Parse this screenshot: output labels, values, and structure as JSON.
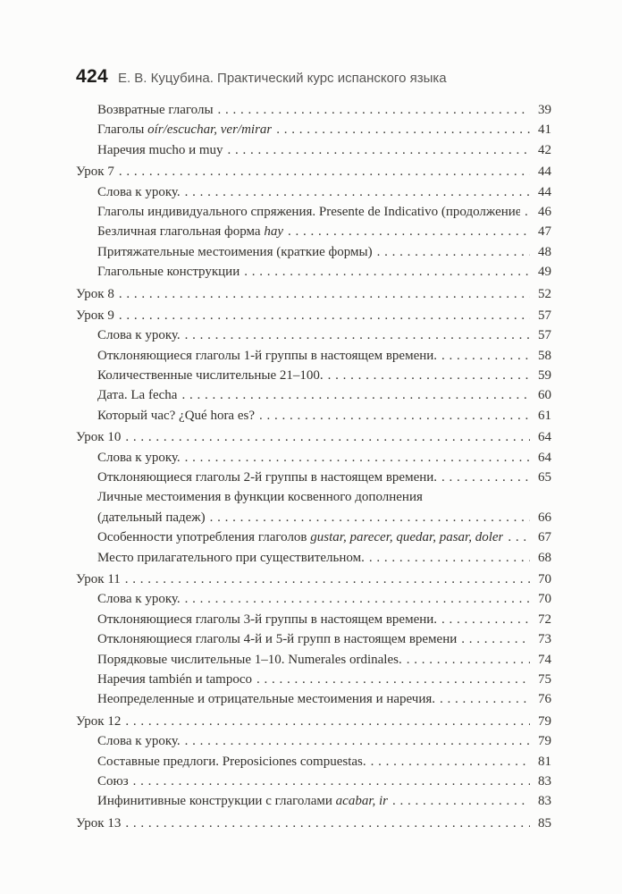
{
  "page": {
    "number": "424",
    "running_title": "Е. В. Куцубина. Практический курс испанского языка"
  },
  "toc": {
    "entries": [
      {
        "indent": 1,
        "gap": 0,
        "parts": [
          [
            "Возвратные глаголы",
            0
          ]
        ],
        "page": "39"
      },
      {
        "indent": 1,
        "gap": 0,
        "parts": [
          [
            "Глаголы ",
            0
          ],
          [
            "oír/escuchar, ver/mirar",
            1
          ]
        ],
        "page": "41"
      },
      {
        "indent": 1,
        "gap": 0,
        "parts": [
          [
            "Наречия mucho и muy",
            0
          ]
        ],
        "page": "42"
      },
      {
        "indent": 0,
        "gap": 1,
        "parts": [
          [
            "Урок 7",
            0
          ]
        ],
        "page": "44"
      },
      {
        "indent": 1,
        "gap": 0,
        "parts": [
          [
            "Слова к уроку.",
            0
          ]
        ],
        "page": "44"
      },
      {
        "indent": 1,
        "gap": 0,
        "parts": [
          [
            "Глаголы индивидуального спряжения. Presente de Indicativo (продолжение).",
            0
          ]
        ],
        "page": "46"
      },
      {
        "indent": 1,
        "gap": 0,
        "parts": [
          [
            "Безличная глагольная форма ",
            0
          ],
          [
            "hay",
            1
          ]
        ],
        "page": "47"
      },
      {
        "indent": 1,
        "gap": 0,
        "parts": [
          [
            "Притяжательные местоимения (краткие формы)",
            0
          ]
        ],
        "page": "48"
      },
      {
        "indent": 1,
        "gap": 0,
        "parts": [
          [
            "Глагольные конструкции",
            0
          ]
        ],
        "page": "49"
      },
      {
        "indent": 0,
        "gap": 1,
        "parts": [
          [
            "Урок 8",
            0
          ]
        ],
        "page": "52"
      },
      {
        "indent": 0,
        "gap": 1,
        "parts": [
          [
            "Урок 9",
            0
          ]
        ],
        "page": "57"
      },
      {
        "indent": 1,
        "gap": 0,
        "parts": [
          [
            "Слова к уроку.",
            0
          ]
        ],
        "page": "57"
      },
      {
        "indent": 1,
        "gap": 0,
        "parts": [
          [
            "Отклоняющиеся глаголы 1-й группы в настоящем времени.",
            0
          ]
        ],
        "page": "58"
      },
      {
        "indent": 1,
        "gap": 0,
        "parts": [
          [
            "Количественные числительные 21–100.",
            0
          ]
        ],
        "page": "59"
      },
      {
        "indent": 1,
        "gap": 0,
        "parts": [
          [
            "Дата. La fecha",
            0
          ]
        ],
        "page": "60"
      },
      {
        "indent": 1,
        "gap": 0,
        "parts": [
          [
            "Который час? ¿Qué hora es?",
            0
          ]
        ],
        "page": "61"
      },
      {
        "indent": 0,
        "gap": 1,
        "parts": [
          [
            "Урок 10",
            0
          ]
        ],
        "page": "64"
      },
      {
        "indent": 1,
        "gap": 0,
        "parts": [
          [
            "Слова к уроку.",
            0
          ]
        ],
        "page": "64"
      },
      {
        "indent": 1,
        "gap": 0,
        "parts": [
          [
            "Отклоняющиеся глаголы 2-й группы в настоящем времени.",
            0
          ]
        ],
        "page": "65"
      },
      {
        "indent": 1,
        "gap": 0,
        "parts": [
          [
            "Личные местоимения в функции косвенного дополнения",
            0
          ]
        ],
        "page": null
      },
      {
        "indent": 1,
        "gap": 0,
        "parts": [
          [
            "(дательный падеж)",
            0
          ]
        ],
        "page": "66"
      },
      {
        "indent": 1,
        "gap": 0,
        "parts": [
          [
            "Особенности употребления глаголов ",
            0
          ],
          [
            "gustar, parecer, quedar, pasar, doler",
            1
          ]
        ],
        "page": "67"
      },
      {
        "indent": 1,
        "gap": 0,
        "parts": [
          [
            "Место прилагательного при существительном.",
            0
          ]
        ],
        "page": "68"
      },
      {
        "indent": 0,
        "gap": 1,
        "parts": [
          [
            "Урок 11",
            0
          ]
        ],
        "page": "70"
      },
      {
        "indent": 1,
        "gap": 0,
        "parts": [
          [
            "Слова к уроку.",
            0
          ]
        ],
        "page": "70"
      },
      {
        "indent": 1,
        "gap": 0,
        "parts": [
          [
            "Отклоняющиеся глаголы 3-й группы в настоящем времени.",
            0
          ]
        ],
        "page": "72"
      },
      {
        "indent": 1,
        "gap": 0,
        "parts": [
          [
            "Отклоняющиеся глаголы 4-й и 5-й групп в настоящем времени",
            0
          ]
        ],
        "page": "73"
      },
      {
        "indent": 1,
        "gap": 0,
        "parts": [
          [
            "Порядковые числительные 1–10. Numerales ordinales.",
            0
          ]
        ],
        "page": "74"
      },
      {
        "indent": 1,
        "gap": 0,
        "parts": [
          [
            "Наречия también и tampoco",
            0
          ]
        ],
        "page": "75"
      },
      {
        "indent": 1,
        "gap": 0,
        "parts": [
          [
            "Неопределенные и отрицательные местоимения и наречия.",
            0
          ]
        ],
        "page": "76"
      },
      {
        "indent": 0,
        "gap": 1,
        "parts": [
          [
            "Урок 12",
            0
          ]
        ],
        "page": "79"
      },
      {
        "indent": 1,
        "gap": 0,
        "parts": [
          [
            "Слова к уроку.",
            0
          ]
        ],
        "page": "79"
      },
      {
        "indent": 1,
        "gap": 0,
        "parts": [
          [
            "Составные предлоги. Preposiciones compuestas.",
            0
          ]
        ],
        "page": "81"
      },
      {
        "indent": 1,
        "gap": 0,
        "parts": [
          [
            "Союз",
            0
          ]
        ],
        "page": "83"
      },
      {
        "indent": 1,
        "gap": 0,
        "parts": [
          [
            "Инфинитивные конструкции с глаголами ",
            0
          ],
          [
            "acabar, ir",
            1
          ]
        ],
        "page": "83"
      },
      {
        "indent": 0,
        "gap": 1,
        "parts": [
          [
            "Урок 13",
            0
          ]
        ],
        "page": "85"
      }
    ]
  }
}
